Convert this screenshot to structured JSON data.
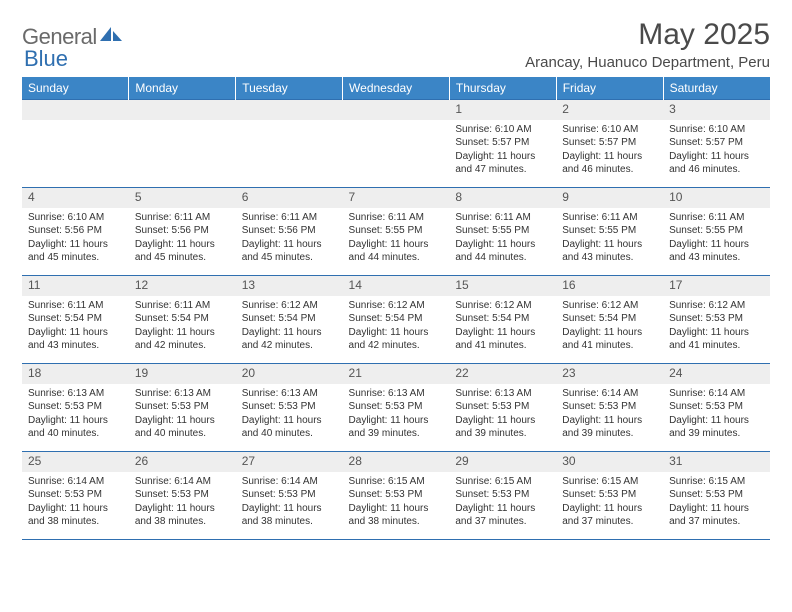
{
  "logo": {
    "general": "General",
    "blue": "Blue"
  },
  "header": {
    "month_title": "May 2025",
    "location": "Arancay, Huanuco Department, Peru"
  },
  "colors": {
    "header_bg": "#3b85c6",
    "row_border": "#2f6fb0",
    "daynum_bg": "#eeeeee"
  },
  "day_labels": [
    "Sunday",
    "Monday",
    "Tuesday",
    "Wednesday",
    "Thursday",
    "Friday",
    "Saturday"
  ],
  "weeks": [
    [
      {
        "n": "",
        "sunrise": "",
        "sunset": "",
        "daylight": ""
      },
      {
        "n": "",
        "sunrise": "",
        "sunset": "",
        "daylight": ""
      },
      {
        "n": "",
        "sunrise": "",
        "sunset": "",
        "daylight": ""
      },
      {
        "n": "",
        "sunrise": "",
        "sunset": "",
        "daylight": ""
      },
      {
        "n": "1",
        "sunrise": "Sunrise: 6:10 AM",
        "sunset": "Sunset: 5:57 PM",
        "daylight": "Daylight: 11 hours and 47 minutes."
      },
      {
        "n": "2",
        "sunrise": "Sunrise: 6:10 AM",
        "sunset": "Sunset: 5:57 PM",
        "daylight": "Daylight: 11 hours and 46 minutes."
      },
      {
        "n": "3",
        "sunrise": "Sunrise: 6:10 AM",
        "sunset": "Sunset: 5:57 PM",
        "daylight": "Daylight: 11 hours and 46 minutes."
      }
    ],
    [
      {
        "n": "4",
        "sunrise": "Sunrise: 6:10 AM",
        "sunset": "Sunset: 5:56 PM",
        "daylight": "Daylight: 11 hours and 45 minutes."
      },
      {
        "n": "5",
        "sunrise": "Sunrise: 6:11 AM",
        "sunset": "Sunset: 5:56 PM",
        "daylight": "Daylight: 11 hours and 45 minutes."
      },
      {
        "n": "6",
        "sunrise": "Sunrise: 6:11 AM",
        "sunset": "Sunset: 5:56 PM",
        "daylight": "Daylight: 11 hours and 45 minutes."
      },
      {
        "n": "7",
        "sunrise": "Sunrise: 6:11 AM",
        "sunset": "Sunset: 5:55 PM",
        "daylight": "Daylight: 11 hours and 44 minutes."
      },
      {
        "n": "8",
        "sunrise": "Sunrise: 6:11 AM",
        "sunset": "Sunset: 5:55 PM",
        "daylight": "Daylight: 11 hours and 44 minutes."
      },
      {
        "n": "9",
        "sunrise": "Sunrise: 6:11 AM",
        "sunset": "Sunset: 5:55 PM",
        "daylight": "Daylight: 11 hours and 43 minutes."
      },
      {
        "n": "10",
        "sunrise": "Sunrise: 6:11 AM",
        "sunset": "Sunset: 5:55 PM",
        "daylight": "Daylight: 11 hours and 43 minutes."
      }
    ],
    [
      {
        "n": "11",
        "sunrise": "Sunrise: 6:11 AM",
        "sunset": "Sunset: 5:54 PM",
        "daylight": "Daylight: 11 hours and 43 minutes."
      },
      {
        "n": "12",
        "sunrise": "Sunrise: 6:11 AM",
        "sunset": "Sunset: 5:54 PM",
        "daylight": "Daylight: 11 hours and 42 minutes."
      },
      {
        "n": "13",
        "sunrise": "Sunrise: 6:12 AM",
        "sunset": "Sunset: 5:54 PM",
        "daylight": "Daylight: 11 hours and 42 minutes."
      },
      {
        "n": "14",
        "sunrise": "Sunrise: 6:12 AM",
        "sunset": "Sunset: 5:54 PM",
        "daylight": "Daylight: 11 hours and 42 minutes."
      },
      {
        "n": "15",
        "sunrise": "Sunrise: 6:12 AM",
        "sunset": "Sunset: 5:54 PM",
        "daylight": "Daylight: 11 hours and 41 minutes."
      },
      {
        "n": "16",
        "sunrise": "Sunrise: 6:12 AM",
        "sunset": "Sunset: 5:54 PM",
        "daylight": "Daylight: 11 hours and 41 minutes."
      },
      {
        "n": "17",
        "sunrise": "Sunrise: 6:12 AM",
        "sunset": "Sunset: 5:53 PM",
        "daylight": "Daylight: 11 hours and 41 minutes."
      }
    ],
    [
      {
        "n": "18",
        "sunrise": "Sunrise: 6:13 AM",
        "sunset": "Sunset: 5:53 PM",
        "daylight": "Daylight: 11 hours and 40 minutes."
      },
      {
        "n": "19",
        "sunrise": "Sunrise: 6:13 AM",
        "sunset": "Sunset: 5:53 PM",
        "daylight": "Daylight: 11 hours and 40 minutes."
      },
      {
        "n": "20",
        "sunrise": "Sunrise: 6:13 AM",
        "sunset": "Sunset: 5:53 PM",
        "daylight": "Daylight: 11 hours and 40 minutes."
      },
      {
        "n": "21",
        "sunrise": "Sunrise: 6:13 AM",
        "sunset": "Sunset: 5:53 PM",
        "daylight": "Daylight: 11 hours and 39 minutes."
      },
      {
        "n": "22",
        "sunrise": "Sunrise: 6:13 AM",
        "sunset": "Sunset: 5:53 PM",
        "daylight": "Daylight: 11 hours and 39 minutes."
      },
      {
        "n": "23",
        "sunrise": "Sunrise: 6:14 AM",
        "sunset": "Sunset: 5:53 PM",
        "daylight": "Daylight: 11 hours and 39 minutes."
      },
      {
        "n": "24",
        "sunrise": "Sunrise: 6:14 AM",
        "sunset": "Sunset: 5:53 PM",
        "daylight": "Daylight: 11 hours and 39 minutes."
      }
    ],
    [
      {
        "n": "25",
        "sunrise": "Sunrise: 6:14 AM",
        "sunset": "Sunset: 5:53 PM",
        "daylight": "Daylight: 11 hours and 38 minutes."
      },
      {
        "n": "26",
        "sunrise": "Sunrise: 6:14 AM",
        "sunset": "Sunset: 5:53 PM",
        "daylight": "Daylight: 11 hours and 38 minutes."
      },
      {
        "n": "27",
        "sunrise": "Sunrise: 6:14 AM",
        "sunset": "Sunset: 5:53 PM",
        "daylight": "Daylight: 11 hours and 38 minutes."
      },
      {
        "n": "28",
        "sunrise": "Sunrise: 6:15 AM",
        "sunset": "Sunset: 5:53 PM",
        "daylight": "Daylight: 11 hours and 38 minutes."
      },
      {
        "n": "29",
        "sunrise": "Sunrise: 6:15 AM",
        "sunset": "Sunset: 5:53 PM",
        "daylight": "Daylight: 11 hours and 37 minutes."
      },
      {
        "n": "30",
        "sunrise": "Sunrise: 6:15 AM",
        "sunset": "Sunset: 5:53 PM",
        "daylight": "Daylight: 11 hours and 37 minutes."
      },
      {
        "n": "31",
        "sunrise": "Sunrise: 6:15 AM",
        "sunset": "Sunset: 5:53 PM",
        "daylight": "Daylight: 11 hours and 37 minutes."
      }
    ]
  ]
}
